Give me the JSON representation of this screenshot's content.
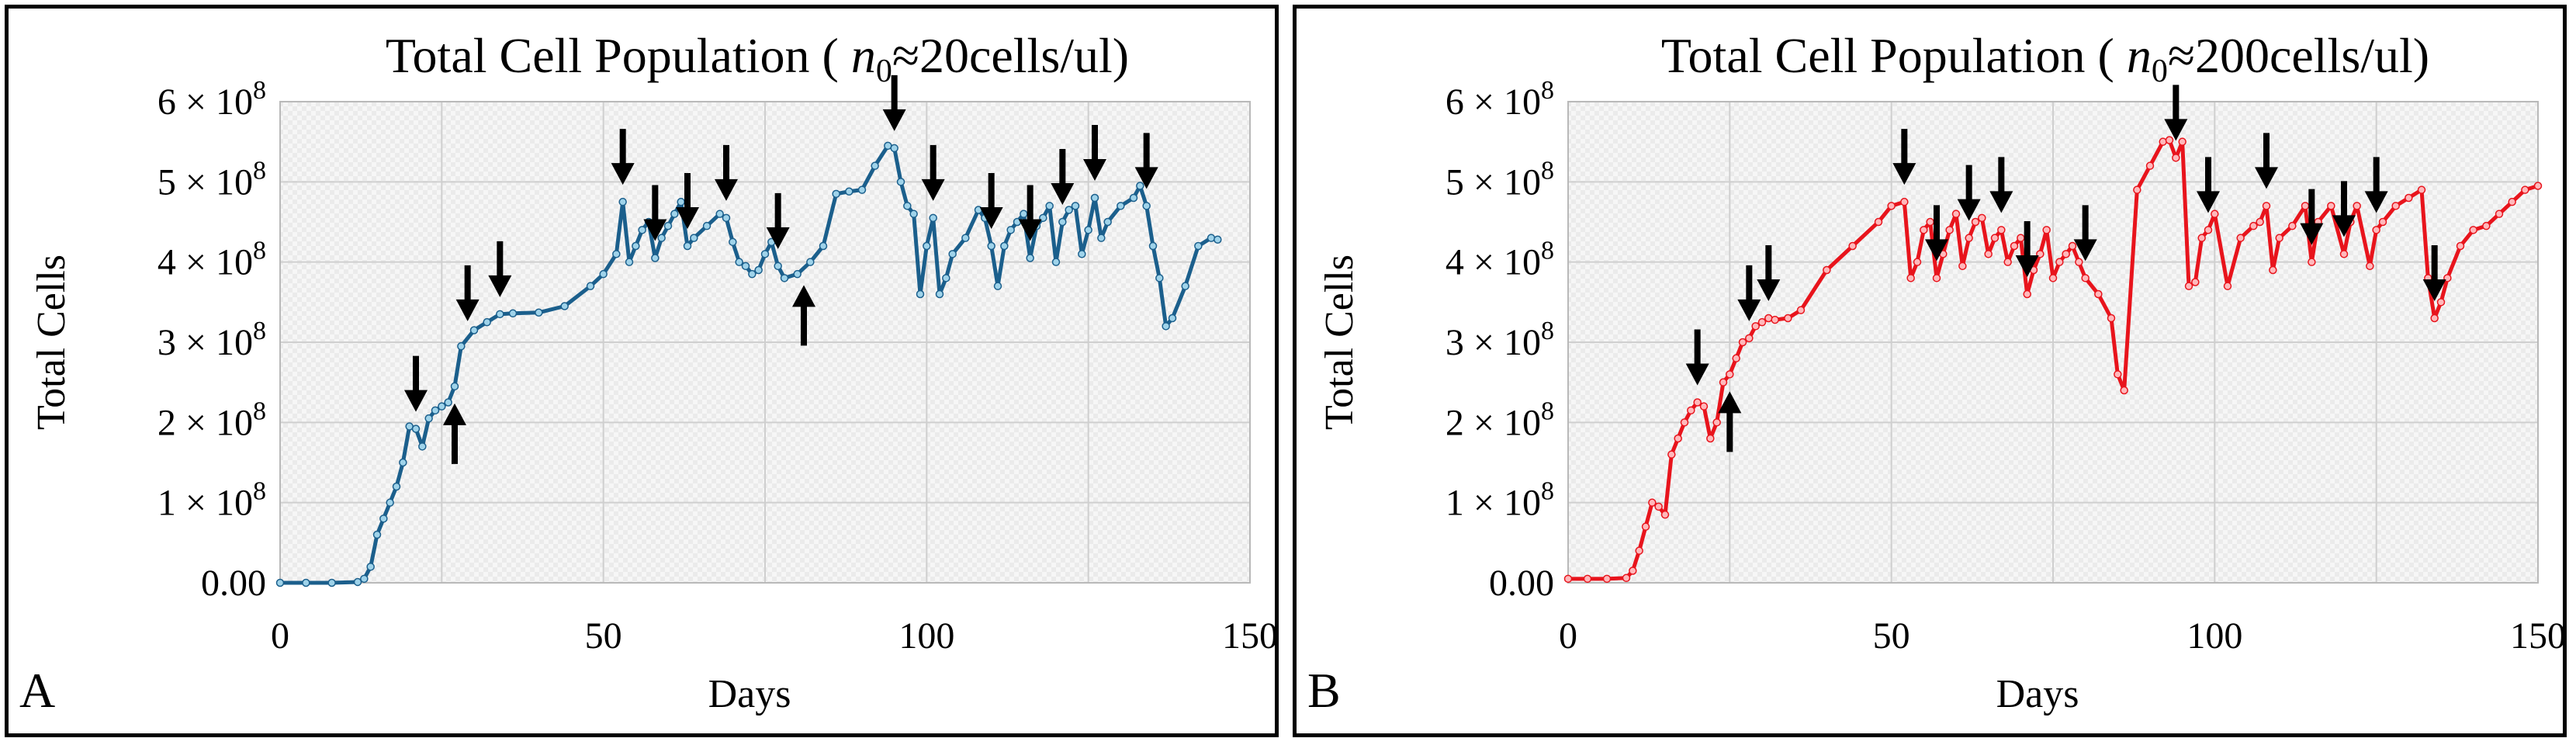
{
  "chart_data": [
    {
      "panel": "A",
      "type": "line",
      "title": "Total Cell Population (",
      "title_sub": "n",
      "title_subscript": "0",
      "title_tail": "≈20cells/ul)",
      "xlabel": "Days",
      "ylabel": "Total Cells",
      "xlim": [
        0,
        150
      ],
      "ylim": [
        0,
        600000000
      ],
      "xticks": [
        0,
        50,
        100,
        150
      ],
      "yticks": [
        {
          "value": 0,
          "label": "0.00",
          "mant": "",
          "exp": ""
        },
        {
          "value": 100000000,
          "label": "",
          "mant": "1 × 10",
          "exp": "8"
        },
        {
          "value": 200000000,
          "label": "",
          "mant": "2 × 10",
          "exp": "8"
        },
        {
          "value": 300000000,
          "label": "",
          "mant": "3 × 10",
          "exp": "8"
        },
        {
          "value": 400000000,
          "label": "",
          "mant": "4 × 10",
          "exp": "8"
        },
        {
          "value": 500000000,
          "label": "",
          "mant": "5 × 10",
          "exp": "8"
        },
        {
          "value": 600000000,
          "label": "",
          "mant": "6 × 10",
          "exp": "8"
        }
      ],
      "grid": true,
      "series": [
        {
          "name": "n0≈20cells/ul",
          "color": "#1b5f8c",
          "marker_color": "#9fd3ea",
          "x": [
            0,
            4,
            8,
            12,
            13,
            14,
            15,
            16,
            17,
            18,
            19,
            20,
            21,
            22,
            23,
            24,
            25,
            26,
            27,
            28,
            30,
            32,
            34,
            36,
            40,
            44,
            48,
            50,
            52,
            53,
            54,
            55,
            56,
            57,
            58,
            59,
            60,
            61,
            62,
            63,
            64,
            66,
            68,
            69,
            70,
            71,
            72,
            73,
            74,
            75,
            76,
            77,
            78,
            80,
            82,
            84,
            86,
            88,
            90,
            92,
            94,
            95,
            96,
            97,
            98,
            99,
            100,
            101,
            102,
            103,
            104,
            106,
            108,
            109,
            110,
            111,
            112,
            113,
            114,
            115,
            116,
            117,
            118,
            119,
            120,
            121,
            122,
            123,
            124,
            125,
            126,
            127,
            128,
            130,
            132,
            133,
            134,
            135,
            136,
            137,
            138,
            140,
            142,
            144,
            145
          ],
          "values": [
            0,
            0,
            0,
            1000000,
            5000000,
            20000000,
            60000000,
            80000000,
            100000000,
            120000000,
            150000000,
            195000000,
            192000000,
            170000000,
            205000000,
            215000000,
            220000000,
            225000000,
            245000000,
            295000000,
            315000000,
            325000000,
            335000000,
            336000000,
            337000000,
            345000000,
            370000000,
            385000000,
            410000000,
            475000000,
            400000000,
            420000000,
            440000000,
            450000000,
            405000000,
            430000000,
            445000000,
            460000000,
            475000000,
            420000000,
            430000000,
            445000000,
            460000000,
            455000000,
            425000000,
            400000000,
            395000000,
            385000000,
            390000000,
            410000000,
            425000000,
            395000000,
            380000000,
            385000000,
            400000000,
            420000000,
            485000000,
            488000000,
            490000000,
            520000000,
            545000000,
            542000000,
            500000000,
            470000000,
            460000000,
            360000000,
            420000000,
            455000000,
            360000000,
            380000000,
            410000000,
            430000000,
            465000000,
            455000000,
            420000000,
            370000000,
            420000000,
            440000000,
            450000000,
            460000000,
            405000000,
            445000000,
            455000000,
            470000000,
            400000000,
            450000000,
            465000000,
            470000000,
            410000000,
            440000000,
            480000000,
            430000000,
            450000000,
            470000000,
            480000000,
            495000000,
            470000000,
            420000000,
            380000000,
            320000000,
            330000000,
            370000000,
            420000000,
            430000000,
            428000000
          ]
        }
      ],
      "annotations": [
        {
          "x": 21,
          "dir": "down"
        },
        {
          "x": 27,
          "dir": "up"
        },
        {
          "x": 29,
          "dir": "down"
        },
        {
          "x": 34,
          "dir": "down"
        },
        {
          "x": 53,
          "dir": "down"
        },
        {
          "x": 58,
          "dir": "down"
        },
        {
          "x": 63,
          "dir": "down"
        },
        {
          "x": 69,
          "dir": "down"
        },
        {
          "x": 77,
          "dir": "down"
        },
        {
          "x": 81,
          "dir": "up"
        },
        {
          "x": 95,
          "dir": "down"
        },
        {
          "x": 101,
          "dir": "down"
        },
        {
          "x": 110,
          "dir": "down"
        },
        {
          "x": 116,
          "dir": "down"
        },
        {
          "x": 121,
          "dir": "down"
        },
        {
          "x": 126,
          "dir": "down"
        },
        {
          "x": 134,
          "dir": "down"
        }
      ],
      "panel_label": "A"
    },
    {
      "panel": "B",
      "type": "line",
      "title": "Total Cell Population (",
      "title_sub": "n",
      "title_subscript": "0",
      "title_tail": "≈200cells/ul)",
      "xlabel": "Days",
      "ylabel": "Total Cells",
      "xlim": [
        0,
        150
      ],
      "ylim": [
        0,
        600000000
      ],
      "xticks": [
        0,
        50,
        100,
        150
      ],
      "yticks": [
        {
          "value": 0,
          "label": "0.00",
          "mant": "",
          "exp": ""
        },
        {
          "value": 100000000,
          "label": "",
          "mant": "1 × 10",
          "exp": "8"
        },
        {
          "value": 200000000,
          "label": "",
          "mant": "2 × 10",
          "exp": "8"
        },
        {
          "value": 300000000,
          "label": "",
          "mant": "3 × 10",
          "exp": "8"
        },
        {
          "value": 400000000,
          "label": "",
          "mant": "4 × 10",
          "exp": "8"
        },
        {
          "value": 500000000,
          "label": "",
          "mant": "5 × 10",
          "exp": "8"
        },
        {
          "value": 600000000,
          "label": "",
          "mant": "6 × 10",
          "exp": "8"
        }
      ],
      "grid": true,
      "series": [
        {
          "name": "n0≈200cells/ul",
          "color": "#e8141c",
          "marker_color": "#ffb8bb",
          "x": [
            0,
            3,
            6,
            9,
            10,
            11,
            12,
            13,
            14,
            15,
            16,
            17,
            18,
            19,
            20,
            21,
            22,
            23,
            24,
            25,
            26,
            27,
            28,
            29,
            30,
            31,
            32,
            34,
            36,
            40,
            44,
            48,
            50,
            52,
            53,
            54,
            55,
            56,
            57,
            58,
            59,
            60,
            61,
            62,
            63,
            64,
            65,
            66,
            67,
            68,
            69,
            70,
            71,
            72,
            73,
            74,
            75,
            76,
            77,
            78,
            79,
            80,
            82,
            84,
            85,
            86,
            88,
            90,
            92,
            93,
            94,
            95,
            96,
            97,
            98,
            99,
            100,
            102,
            104,
            106,
            107,
            108,
            109,
            110,
            112,
            114,
            115,
            116,
            118,
            120,
            121,
            122,
            124,
            125,
            126,
            128,
            130,
            132,
            133,
            134,
            135,
            136,
            138,
            140,
            142,
            144,
            146,
            148,
            150
          ],
          "values": [
            5000000,
            5000000,
            5000000,
            6000000,
            15000000,
            40000000,
            70000000,
            100000000,
            95000000,
            85000000,
            160000000,
            180000000,
            200000000,
            215000000,
            225000000,
            220000000,
            180000000,
            200000000,
            250000000,
            260000000,
            280000000,
            300000000,
            305000000,
            320000000,
            325000000,
            330000000,
            328000000,
            330000000,
            340000000,
            390000000,
            420000000,
            450000000,
            470000000,
            475000000,
            380000000,
            400000000,
            440000000,
            450000000,
            380000000,
            410000000,
            440000000,
            460000000,
            395000000,
            430000000,
            450000000,
            455000000,
            410000000,
            430000000,
            440000000,
            400000000,
            420000000,
            430000000,
            360000000,
            390000000,
            410000000,
            440000000,
            380000000,
            400000000,
            410000000,
            420000000,
            400000000,
            380000000,
            360000000,
            330000000,
            260000000,
            240000000,
            490000000,
            520000000,
            550000000,
            552000000,
            530000000,
            550000000,
            370000000,
            375000000,
            430000000,
            440000000,
            460000000,
            370000000,
            430000000,
            445000000,
            450000000,
            470000000,
            390000000,
            430000000,
            445000000,
            470000000,
            400000000,
            450000000,
            470000000,
            410000000,
            450000000,
            470000000,
            395000000,
            440000000,
            450000000,
            470000000,
            480000000,
            490000000,
            380000000,
            330000000,
            350000000,
            380000000,
            420000000,
            440000000,
            445000000,
            460000000,
            475000000,
            490000000,
            495000000
          ]
        }
      ],
      "annotations": [
        {
          "x": 20,
          "dir": "down"
        },
        {
          "x": 25,
          "dir": "up"
        },
        {
          "x": 28,
          "dir": "down"
        },
        {
          "x": 31,
          "dir": "down"
        },
        {
          "x": 52,
          "dir": "down"
        },
        {
          "x": 57,
          "dir": "down"
        },
        {
          "x": 62,
          "dir": "down"
        },
        {
          "x": 67,
          "dir": "down"
        },
        {
          "x": 71,
          "dir": "down"
        },
        {
          "x": 80,
          "dir": "down"
        },
        {
          "x": 94,
          "dir": "down"
        },
        {
          "x": 99,
          "dir": "down"
        },
        {
          "x": 108,
          "dir": "down"
        },
        {
          "x": 115,
          "dir": "down"
        },
        {
          "x": 120,
          "dir": "down"
        },
        {
          "x": 125,
          "dir": "down"
        },
        {
          "x": 134,
          "dir": "down"
        }
      ],
      "panel_label": "B"
    }
  ]
}
